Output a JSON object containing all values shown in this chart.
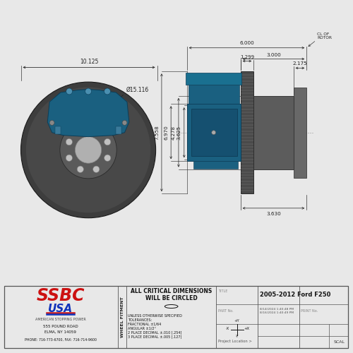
{
  "title": "2005-2012 Ford F250",
  "bg_color": "#e8e8e8",
  "drawing_bg": "#ffffff",
  "caliper_color": "#1a6080",
  "rotor_dark": "#3a3a3a",
  "rotor_mid": "#555555",
  "rotor_light": "#6a6a6a",
  "dim_color": "#222222",
  "dims_front": {
    "overall_width": "10.125",
    "rotor_dia": "Ø15.116"
  },
  "dims_side": {
    "d1": "6.000",
    "d2": "3.000",
    "d3": "2.175",
    "d4": "1.299",
    "d5": "7.558",
    "d6": "6.970",
    "d7": "4.278",
    "d8": "3.625",
    "d9": "3.630"
  },
  "company_name": "SSBC",
  "company_sub": "USA",
  "company_tag": "AMERICAN STOPPING POWER",
  "company_addr1": "555 POUND ROAD",
  "company_addr2": "ELMA, NY 14059",
  "company_phone": "PHONE: 716-773-6700, FAX: 716-714-9600",
  "title_block_text": "ALL CRITICAL DIMENSIONS\nWILL BE CIRCLED",
  "tolerances": "UNLESS OTHERWISE SPECIFIED\nTOLERANCES:\nFRACTIONAL ±1/64\nANGULAR ±1/2°\n2 PLACE DECIMAL ±.010 [.254]\n3 PLACE DECIMAL ±.005 [.127]",
  "wheel_fitment_label": "WHEEL FITMENT",
  "project_loc": "Project Location >",
  "scale_label": "SCAL",
  "cl_rotor": "CL OF\nROTOR"
}
